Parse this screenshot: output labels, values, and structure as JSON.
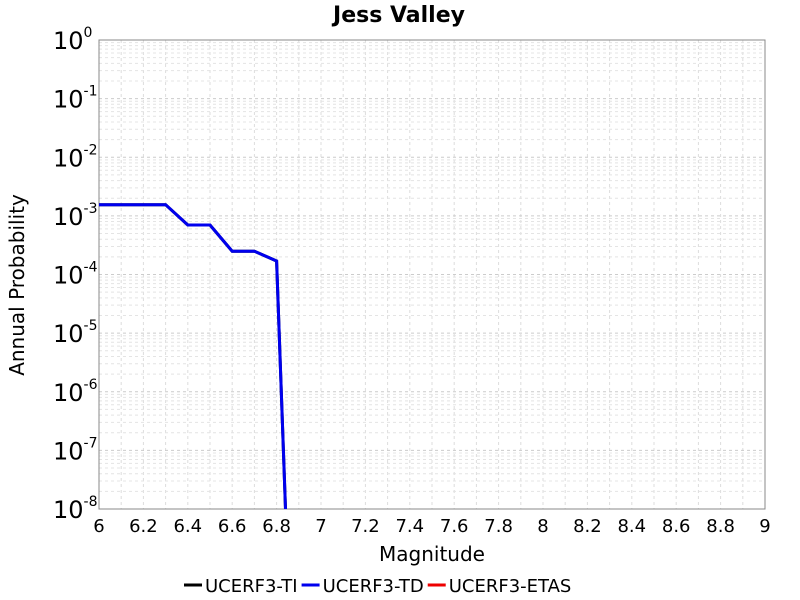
{
  "chart_data": {
    "type": "line",
    "title": "Jess Valley",
    "xlabel": "Magnitude",
    "ylabel": "Annual Probability",
    "xlim": [
      6,
      9
    ],
    "ylim": [
      1e-08,
      1
    ],
    "yscale": "log",
    "grid": true,
    "legend_placement": "bottom",
    "x_ticks": [
      "6",
      "6.2",
      "6.4",
      "6.6",
      "6.8",
      "7",
      "7.2",
      "7.4",
      "7.6",
      "7.8",
      "8",
      "8.2",
      "8.4",
      "8.6",
      "8.8",
      "9"
    ],
    "y_tick_exponents": [
      "0",
      "-1",
      "-2",
      "-3",
      "-4",
      "-5",
      "-6",
      "-7",
      "-8"
    ],
    "y_tick_base": "10",
    "series": [
      {
        "name": "UCERF3-TI",
        "color": "#000000",
        "x": [
          6.0,
          6.1,
          6.2,
          6.3,
          6.4,
          6.5,
          6.6,
          6.7,
          6.8,
          6.84
        ],
        "y": [
          0.00155,
          0.00155,
          0.00155,
          0.00155,
          0.0007,
          0.0007,
          0.00025,
          0.00025,
          0.00017,
          1e-08
        ]
      },
      {
        "name": "UCERF3-TD",
        "color": "#0000ee",
        "x": [
          6.0,
          6.1,
          6.2,
          6.3,
          6.4,
          6.5,
          6.6,
          6.7,
          6.8,
          6.84
        ],
        "y": [
          0.00155,
          0.00155,
          0.00155,
          0.00155,
          0.0007,
          0.0007,
          0.00025,
          0.00025,
          0.00017,
          1e-08
        ]
      },
      {
        "name": "UCERF3-ETAS",
        "color": "#ee0000",
        "x": [],
        "y": []
      }
    ]
  }
}
